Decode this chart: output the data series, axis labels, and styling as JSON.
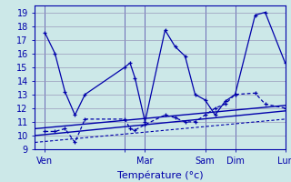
{
  "xlabel": "Température (°c)",
  "background_color": "#cce8e8",
  "grid_color": "#9999bb",
  "line_color": "#0000aa",
  "ylim": [
    9,
    19.5
  ],
  "yticks": [
    9,
    10,
    11,
    12,
    13,
    14,
    15,
    16,
    17,
    18,
    19
  ],
  "xlim": [
    0,
    100
  ],
  "day_ticks": [
    4,
    36,
    44,
    68,
    80,
    100
  ],
  "day_labels": [
    "Ven",
    "",
    "Mar",
    "Sam",
    "Dim",
    "Lun"
  ],
  "vline_positions": [
    4,
    36,
    44,
    68,
    80,
    100
  ],
  "series1_x": [
    4,
    8,
    12,
    16,
    20,
    36,
    38,
    40,
    44,
    52,
    56,
    60,
    64,
    68,
    72,
    76,
    80,
    88,
    92,
    100
  ],
  "series1_y": [
    17.5,
    16.0,
    13.2,
    11.5,
    13.0,
    15.0,
    15.3,
    14.2,
    11.0,
    17.7,
    16.5,
    15.8,
    13.0,
    12.6,
    11.5,
    12.5,
    13.0,
    18.8,
    19.0,
    15.3
  ],
  "series2_x": [
    4,
    8,
    12,
    16,
    20,
    36,
    38,
    40,
    44,
    52,
    56,
    60,
    64,
    68,
    72,
    76,
    80,
    88,
    92,
    100
  ],
  "series2_y": [
    10.3,
    10.3,
    10.5,
    9.5,
    11.2,
    11.2,
    10.5,
    10.4,
    10.8,
    11.5,
    11.3,
    11.0,
    11.0,
    11.5,
    12.0,
    12.3,
    13.0,
    13.1,
    12.3,
    12.0
  ],
  "trend1_x": [
    0,
    100
  ],
  "trend1_y": [
    10.5,
    12.2
  ],
  "trend2_x": [
    0,
    100
  ],
  "trend2_y": [
    10.0,
    11.8
  ],
  "trend3_x": [
    0,
    100
  ],
  "trend3_y": [
    9.5,
    11.2
  ],
  "fontsize": 7
}
